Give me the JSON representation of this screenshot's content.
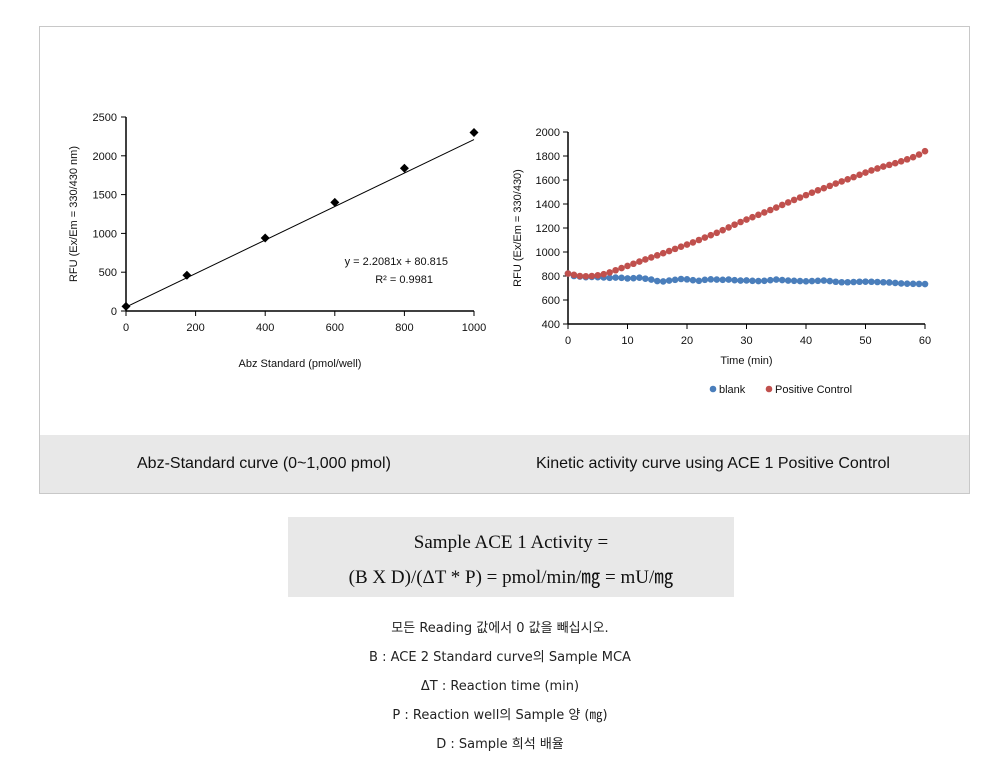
{
  "captions": {
    "left": "Abz-Standard curve (0~1,000 pmol)",
    "right": "Kinetic activity curve using ACE 1 Positive Control"
  },
  "chart_data": [
    {
      "type": "scatter",
      "title": "",
      "xlabel": "Abz Standard (pmol/well)",
      "ylabel": "RFU (Ex/Em = 330/430 nm)",
      "xlim": [
        0,
        1000
      ],
      "ylim": [
        0,
        2500
      ],
      "xticks": [
        "0",
        "200",
        "400",
        "600",
        "800",
        "1000"
      ],
      "yticks": [
        "0",
        "500",
        "1000",
        "1500",
        "2000",
        "2500"
      ],
      "x": [
        0,
        175,
        400,
        600,
        800,
        1000
      ],
      "y": [
        60,
        460,
        940,
        1400,
        1840,
        2300
      ],
      "marker": "diamond",
      "trendline": {
        "slope": 2.2081,
        "intercept": 80.815
      },
      "equation": "y = 2.2081x + 80.815",
      "r_squared": "R² = 0.9981"
    },
    {
      "type": "scatter",
      "title": "",
      "xlabel": "Time (min)",
      "ylabel": "RFU (Ex/Em = 330/430)",
      "xlim": [
        0,
        60
      ],
      "ylim": [
        400,
        2000
      ],
      "xticks": [
        "0",
        "10",
        "20",
        "30",
        "40",
        "50",
        "60"
      ],
      "yticks": [
        "400",
        "600",
        "800",
        "1000",
        "1200",
        "1400",
        "1600",
        "1800",
        "2000"
      ],
      "legend": "bottom",
      "series": [
        {
          "name": "blank",
          "color": "#4a7ebb",
          "x": [
            0,
            1,
            2,
            3,
            4,
            5,
            6,
            7,
            8,
            9,
            10,
            11,
            12,
            13,
            14,
            15,
            16,
            17,
            18,
            19,
            20,
            21,
            22,
            23,
            24,
            25,
            26,
            27,
            28,
            29,
            30,
            31,
            32,
            33,
            34,
            35,
            36,
            37,
            38,
            39,
            40,
            41,
            42,
            43,
            44,
            45,
            46,
            47,
            48,
            49,
            50,
            51,
            52,
            53,
            54,
            55,
            56,
            57,
            58,
            59,
            60
          ],
          "y": [
            820,
            800,
            795,
            790,
            792,
            790,
            788,
            785,
            787,
            785,
            780,
            782,
            786,
            778,
            770,
            758,
            755,
            762,
            768,
            775,
            772,
            765,
            760,
            768,
            772,
            770,
            768,
            770,
            765,
            762,
            763,
            760,
            758,
            760,
            765,
            770,
            766,
            762,
            760,
            758,
            756,
            758,
            760,
            762,
            758,
            752,
            748,
            748,
            750,
            752,
            753,
            752,
            750,
            748,
            746,
            742,
            738,
            736,
            735,
            734,
            733
          ]
        },
        {
          "name": "Positive Control",
          "color": "#c0504d",
          "x": [
            0,
            1,
            2,
            3,
            4,
            5,
            6,
            7,
            8,
            9,
            10,
            11,
            12,
            13,
            14,
            15,
            16,
            17,
            18,
            19,
            20,
            21,
            22,
            23,
            24,
            25,
            26,
            27,
            28,
            29,
            30,
            31,
            32,
            33,
            34,
            35,
            36,
            37,
            38,
            39,
            40,
            41,
            42,
            43,
            44,
            45,
            46,
            47,
            48,
            49,
            50,
            51,
            52,
            53,
            54,
            55,
            56,
            57,
            58,
            59,
            60
          ],
          "y": [
            820,
            810,
            800,
            798,
            800,
            806,
            815,
            830,
            848,
            866,
            884,
            902,
            920,
            938,
            955,
            972,
            990,
            1008,
            1026,
            1044,
            1062,
            1080,
            1100,
            1120,
            1140,
            1160,
            1182,
            1205,
            1228,
            1250,
            1270,
            1290,
            1310,
            1330,
            1350,
            1370,
            1392,
            1413,
            1434,
            1454,
            1474,
            1494,
            1514,
            1532,
            1551,
            1570,
            1588,
            1606,
            1624,
            1643,
            1662,
            1680,
            1696,
            1712,
            1726,
            1740,
            1756,
            1772,
            1790,
            1812,
            1840
          ]
        }
      ]
    }
  ],
  "formula": {
    "line1": "Sample ACE 1 Activity =",
    "line2": "(B X D)/(ΔT * P) = pmol/min/㎎ = mU/㎎"
  },
  "notes": [
    "모든 Reading 값에서 0 값을 빼십시오.",
    "B : ACE 2 Standard curve의 Sample MCA",
    "ΔT : Reaction time (min)",
    "P : Reaction well의 Sample 양 (㎎)",
    "D : Sample 희석 배율"
  ]
}
